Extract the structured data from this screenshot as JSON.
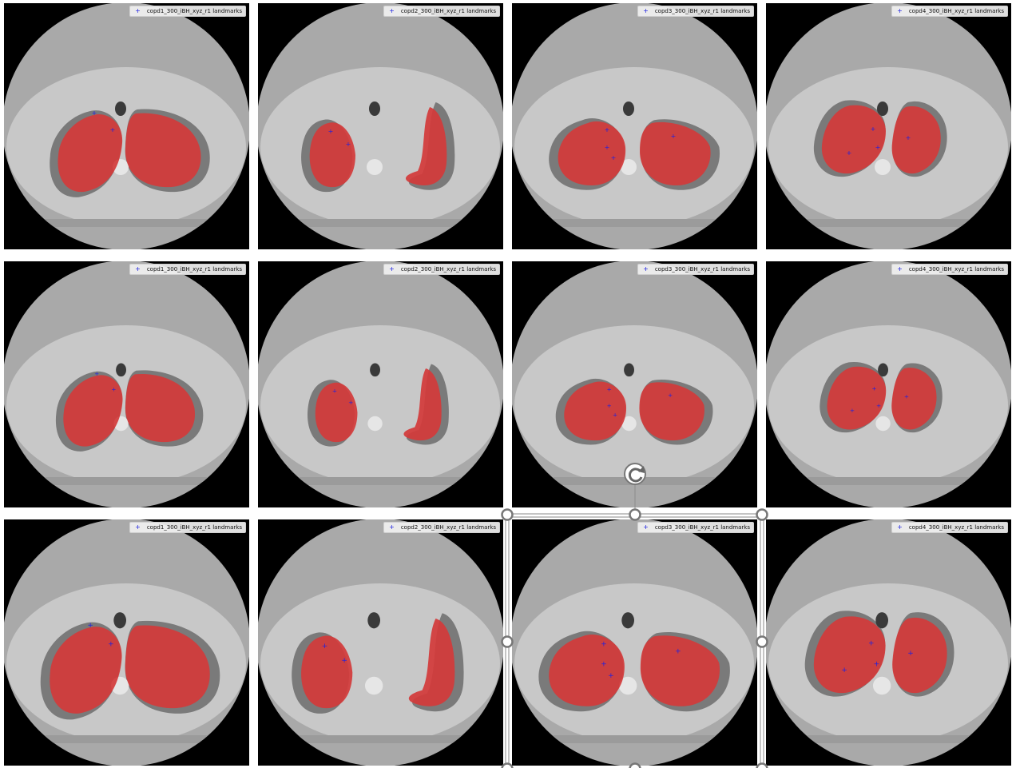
{
  "legend_label_suffix": " landmarks",
  "columns": [
    {
      "id": "copd1",
      "legend": "copd1_300_iBH_xyz_r1 landmarks"
    },
    {
      "id": "copd2",
      "legend": "copd2_300_iBH_xyz_r1 landmarks"
    },
    {
      "id": "copd3",
      "legend": "copd3_300_iBH_xyz_r1 landmarks"
    },
    {
      "id": "copd4",
      "legend": "copd4_300_iBH_xyz_r1 landmarks"
    }
  ],
  "rows": 3,
  "colors": {
    "background": "#000000",
    "scan_outer": "#a9a9a9",
    "scan_body": "#c8c8c8",
    "lung_air": "#7a7a7a",
    "mask": "#d23a3a",
    "landmark": "#1f22e0",
    "selection_handle": "#777777"
  },
  "marker_icon": "plus-marker",
  "rotate_icon": "rotate-icon"
}
